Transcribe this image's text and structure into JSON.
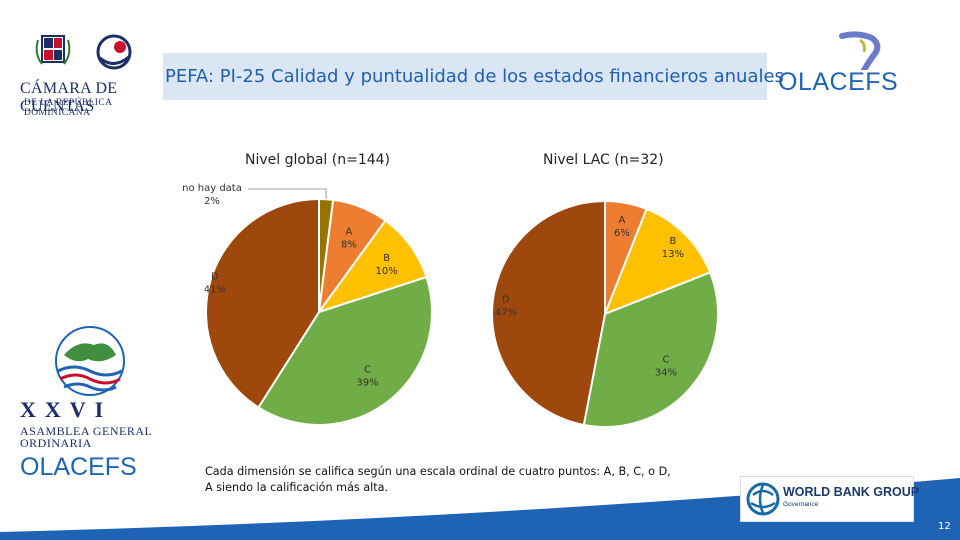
{
  "header": {
    "title": "PEFA: PI-25 Calidad y puntualidad de los estados financieros anuales"
  },
  "logos": {
    "left_name": "CÁMARA DE CUENTAS",
    "left_sub": "DE LA REPÚBLICA DOMINICANA",
    "right_name": "OLACEFS",
    "assembly_number": "XXVI",
    "assembly_line1": "ASAMBLEA GENERAL",
    "assembly_line2": "ORDINARIA",
    "assembly_org": "OLACEFS",
    "wbg_name": "WORLD BANK GROUP",
    "wbg_sub": "Governance"
  },
  "colors": {
    "A": "#ed7d31",
    "B": "#ffc000",
    "C": "#70ad47",
    "D": "#9e480e",
    "no_data": "#997300",
    "title_bg": "#dbe6f5",
    "title_text": "#1f5fae",
    "accent_blue": "#1f64b4"
  },
  "chart_data": [
    {
      "type": "pie",
      "title": "Nivel global (n=144)",
      "labels": [
        "no hay data",
        "A",
        "B",
        "C",
        "D"
      ],
      "values": [
        2,
        8,
        10,
        39,
        41
      ],
      "value_labels": [
        "2%",
        "8%",
        "10%",
        "39%",
        "41%"
      ]
    },
    {
      "type": "pie",
      "title": "Nivel LAC (n=32)",
      "labels": [
        "A",
        "B",
        "C",
        "D"
      ],
      "values": [
        6,
        13,
        34,
        47
      ],
      "value_labels": [
        "6%",
        "13%",
        "34%",
        "47%"
      ]
    }
  ],
  "caption": {
    "line1": "Cada dimensión se califica según una escala ordinal de cuatro puntos: A, B, C, o D,",
    "line2": "A siendo la calificación más alta."
  },
  "page_number": "12"
}
